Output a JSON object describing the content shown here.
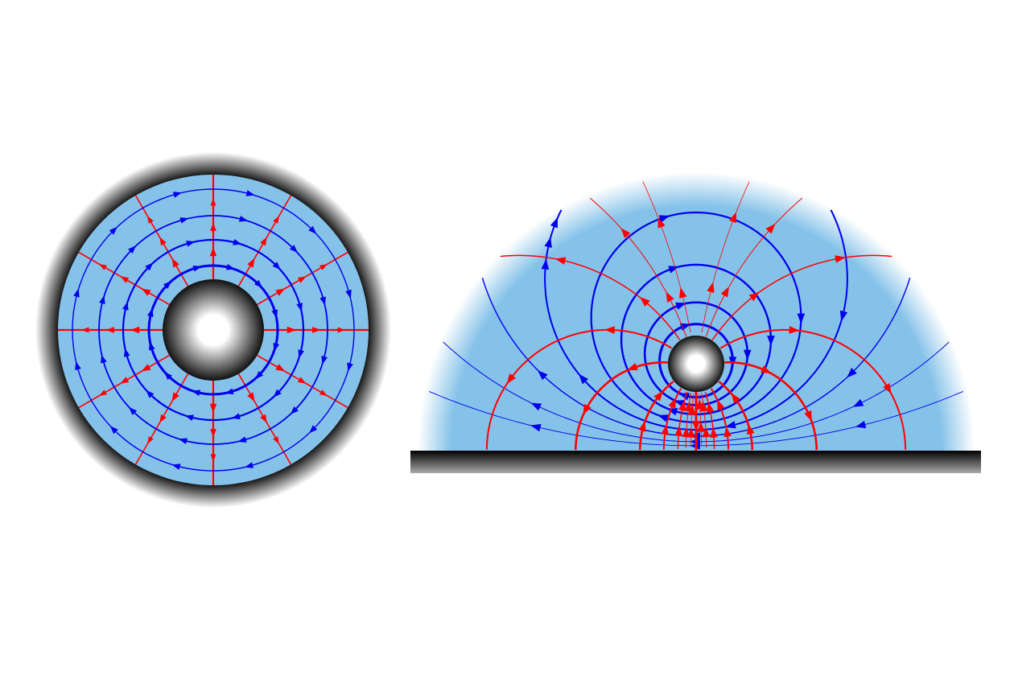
{
  "colors": {
    "fluid": "#85c2e9",
    "streamline": "#0000ee",
    "potential_line": "#ff0000",
    "wall": "#000000"
  },
  "figures": [
    {
      "id": "cylinder-in-annulus",
      "streamline_direction": "clockwise",
      "potential_direction": "outward"
    },
    {
      "id": "cylinder-near-wall",
      "streamline_direction": "clockwise",
      "potential_direction": "toward-wall"
    }
  ]
}
